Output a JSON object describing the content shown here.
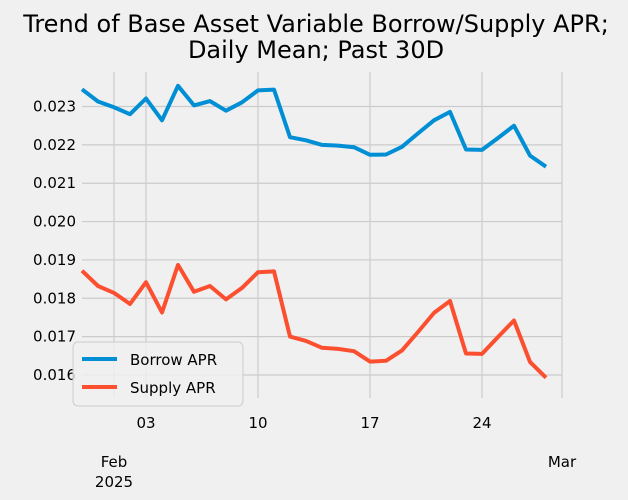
{
  "chart_data": {
    "type": "line",
    "title_lines": [
      "Trend of Base Asset Variable Borrow/Supply APR;",
      "Daily Mean; Past 30D"
    ],
    "xlabel": "",
    "ylabel": "",
    "x_range": [
      "2025-01-30",
      "2025-03-01"
    ],
    "ylim": [
      0.0154,
      0.0239
    ],
    "yticks": [
      {
        "value": 0.016,
        "label": "0.016"
      },
      {
        "value": 0.017,
        "label": "0.017"
      },
      {
        "value": 0.018,
        "label": "0.018"
      },
      {
        "value": 0.019,
        "label": "0.019"
      },
      {
        "value": 0.02,
        "label": "0.020"
      },
      {
        "value": 0.021,
        "label": "0.021"
      },
      {
        "value": 0.022,
        "label": "0.022"
      },
      {
        "value": 0.023,
        "label": "0.023"
      }
    ],
    "xticks": [
      {
        "date": "2025-02-03",
        "label": "03"
      },
      {
        "date": "2025-02-10",
        "label": "10"
      },
      {
        "date": "2025-02-17",
        "label": "17"
      },
      {
        "date": "2025-02-24",
        "label": "24"
      }
    ],
    "xticks_major": [
      {
        "date": "2025-02-01",
        "label": "Feb",
        "sublabel": "2025"
      },
      {
        "date": "2025-03-01",
        "label": "Mar",
        "sublabel": ""
      }
    ],
    "grid": true,
    "legend_position": "lower-left",
    "series": [
      {
        "name": "Borrow APR",
        "color": "#008fd5",
        "points": [
          {
            "x": "2025-01-30",
            "y": 0.02345
          },
          {
            "x": "2025-01-31",
            "y": 0.02313
          },
          {
            "x": "2025-02-01",
            "y": 0.02298
          },
          {
            "x": "2025-02-02",
            "y": 0.0228
          },
          {
            "x": "2025-02-03",
            "y": 0.02321
          },
          {
            "x": "2025-02-04",
            "y": 0.02264
          },
          {
            "x": "2025-02-05",
            "y": 0.02354
          },
          {
            "x": "2025-02-06",
            "y": 0.02303
          },
          {
            "x": "2025-02-07",
            "y": 0.02314
          },
          {
            "x": "2025-02-08",
            "y": 0.02289
          },
          {
            "x": "2025-02-09",
            "y": 0.02311
          },
          {
            "x": "2025-02-10",
            "y": 0.02342
          },
          {
            "x": "2025-02-11",
            "y": 0.02344
          },
          {
            "x": "2025-02-12",
            "y": 0.0222
          },
          {
            "x": "2025-02-13",
            "y": 0.02212
          },
          {
            "x": "2025-02-14",
            "y": 0.022
          },
          {
            "x": "2025-02-15",
            "y": 0.02198
          },
          {
            "x": "2025-02-16",
            "y": 0.02194
          },
          {
            "x": "2025-02-17",
            "y": 0.02174
          },
          {
            "x": "2025-02-18",
            "y": 0.02175
          },
          {
            "x": "2025-02-19",
            "y": 0.02195
          },
          {
            "x": "2025-02-20",
            "y": 0.0223
          },
          {
            "x": "2025-02-21",
            "y": 0.02264
          },
          {
            "x": "2025-02-22",
            "y": 0.02286
          },
          {
            "x": "2025-02-23",
            "y": 0.02188
          },
          {
            "x": "2025-02-24",
            "y": 0.02187
          },
          {
            "x": "2025-02-25",
            "y": 0.02218
          },
          {
            "x": "2025-02-26",
            "y": 0.0225
          },
          {
            "x": "2025-02-27",
            "y": 0.02172
          },
          {
            "x": "2025-02-28",
            "y": 0.02143
          }
        ]
      },
      {
        "name": "Supply APR",
        "color": "#fc4f30",
        "points": [
          {
            "x": "2025-01-30",
            "y": 0.01872
          },
          {
            "x": "2025-01-31",
            "y": 0.01832
          },
          {
            "x": "2025-02-01",
            "y": 0.01814
          },
          {
            "x": "2025-02-02",
            "y": 0.01785
          },
          {
            "x": "2025-02-03",
            "y": 0.01842
          },
          {
            "x": "2025-02-04",
            "y": 0.01763
          },
          {
            "x": "2025-02-05",
            "y": 0.01887
          },
          {
            "x": "2025-02-06",
            "y": 0.01817
          },
          {
            "x": "2025-02-07",
            "y": 0.01832
          },
          {
            "x": "2025-02-08",
            "y": 0.01797
          },
          {
            "x": "2025-02-09",
            "y": 0.01827
          },
          {
            "x": "2025-02-10",
            "y": 0.01868
          },
          {
            "x": "2025-02-11",
            "y": 0.0187
          },
          {
            "x": "2025-02-12",
            "y": 0.017
          },
          {
            "x": "2025-02-13",
            "y": 0.01689
          },
          {
            "x": "2025-02-14",
            "y": 0.01671
          },
          {
            "x": "2025-02-15",
            "y": 0.01668
          },
          {
            "x": "2025-02-16",
            "y": 0.01662
          },
          {
            "x": "2025-02-17",
            "y": 0.01635
          },
          {
            "x": "2025-02-18",
            "y": 0.01637
          },
          {
            "x": "2025-02-19",
            "y": 0.01664
          },
          {
            "x": "2025-02-20",
            "y": 0.01712
          },
          {
            "x": "2025-02-21",
            "y": 0.01762
          },
          {
            "x": "2025-02-22",
            "y": 0.01793
          },
          {
            "x": "2025-02-23",
            "y": 0.01656
          },
          {
            "x": "2025-02-24",
            "y": 0.01655
          },
          {
            "x": "2025-02-25",
            "y": 0.01699
          },
          {
            "x": "2025-02-26",
            "y": 0.01742
          },
          {
            "x": "2025-02-27",
            "y": 0.01634
          },
          {
            "x": "2025-02-28",
            "y": 0.01593
          }
        ]
      }
    ]
  }
}
